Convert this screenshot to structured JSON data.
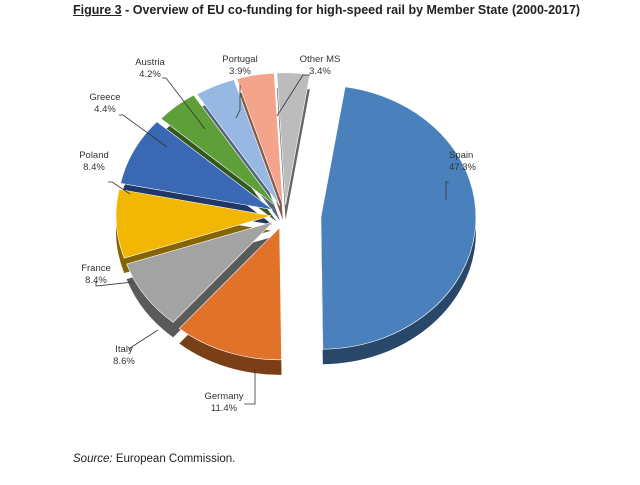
{
  "figure": {
    "number": "Figure 3",
    "separator": " - ",
    "title": "Overview of EU co-funding for high-speed rail by Member State (2000-2017)"
  },
  "source": {
    "label": "Source:",
    "text": " European Commission."
  },
  "chart_data": {
    "type": "pie",
    "title": "Overview of EU co-funding for high-speed rail by Member State (2000-2017)",
    "categories": [
      "Spain",
      "Germany",
      "Italy",
      "France",
      "Poland",
      "Greece",
      "Austria",
      "Portugal",
      "Other MS"
    ],
    "values": [
      47.3,
      11.4,
      8.6,
      8.4,
      8.4,
      4.4,
      4.2,
      3.9,
      3.4
    ],
    "value_labels": [
      "47.3%",
      "11.4%",
      "8.6%",
      "8.4%",
      "8.4%",
      "4.4%",
      "4.2%",
      "3.9%",
      "3.4%"
    ],
    "unit": "%",
    "colors": [
      "#4a81bd",
      "#e0722a",
      "#a3a3a3",
      "#f2b705",
      "#3a68b5",
      "#5f9f3a",
      "#98b8e4",
      "#f3a48a",
      "#bcbcbc"
    ],
    "style": "3d-exploded",
    "legend": "none (slice labels)"
  }
}
